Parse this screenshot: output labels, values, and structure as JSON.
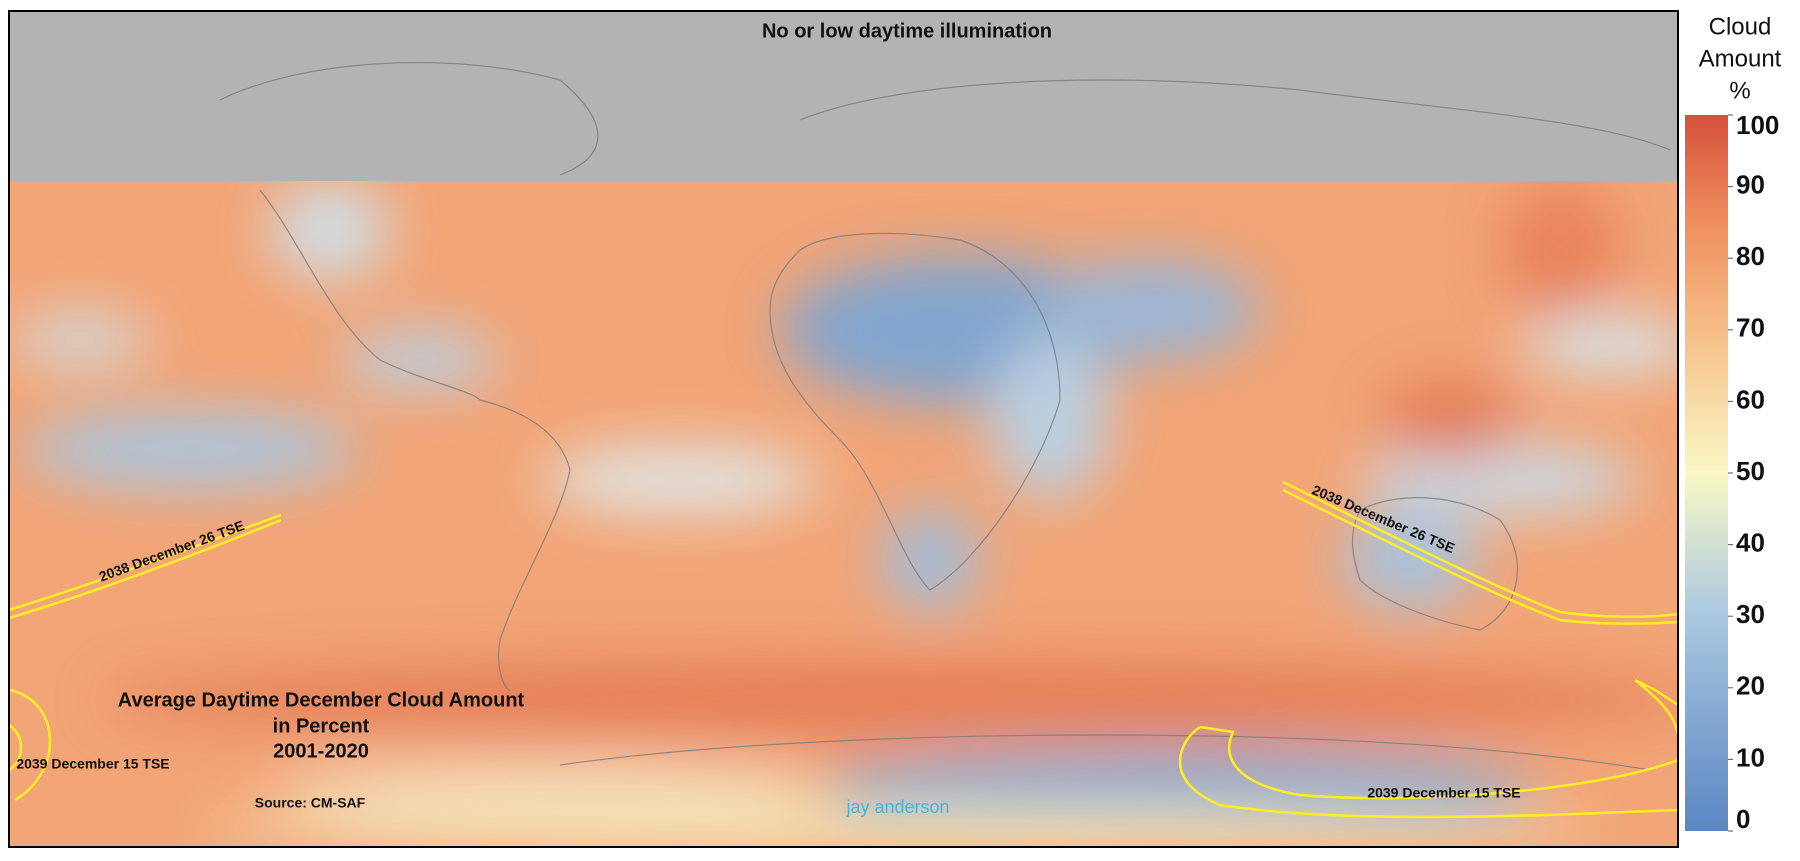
{
  "map": {
    "no_illumination_label": "No or low daytime illumination",
    "title_lines": [
      "Average Daytime December Cloud Amount",
      "in Percent",
      "2001-2020"
    ],
    "source": "Source: CM-SAF",
    "author": "jay anderson",
    "eclipse_labels": [
      "2038 December 26 TSE",
      "2038 December 26 TSE",
      "2039 December 15 TSE",
      "2039 December 15 TSE"
    ]
  },
  "colorbar": {
    "title_lines": [
      "Cloud",
      "Amount",
      "%"
    ],
    "range": [
      0,
      100
    ],
    "ticks": [
      0,
      10,
      20,
      30,
      40,
      50,
      60,
      70,
      80,
      90,
      100
    ]
  }
}
